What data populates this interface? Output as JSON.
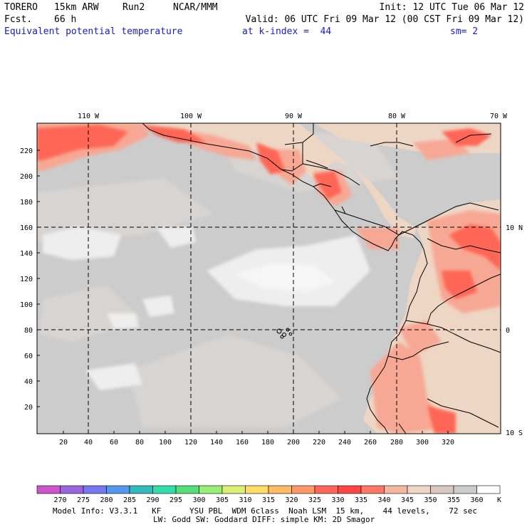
{
  "header": {
    "model": "TORERO",
    "resolution": "15km ARW",
    "run": "Run2",
    "org": "NCAR/MMM",
    "init": "Init: 12 UTC Tue 06 Mar 12",
    "fcst_label": "Fcst.",
    "fcst_value": "66 h",
    "valid": "Valid: 06 UTC Fri 09 Mar 12 (00 CST Fri 09 Mar 12)",
    "field": "Equivalent potential temperature",
    "level": "at k-index =  44",
    "smoothing": "sm= 2"
  },
  "map": {
    "lon_labels": [
      "110 W",
      "100 W",
      "90 W",
      "80 W",
      "70 W"
    ],
    "lat_labels": [
      "10 N",
      "0",
      "10 S"
    ],
    "x_ticks": [
      "20",
      "40",
      "60",
      "80",
      "100",
      "120",
      "140",
      "160",
      "180",
      "200",
      "220",
      "240",
      "260",
      "280",
      "300",
      "320"
    ],
    "y_ticks": [
      "20",
      "40",
      "60",
      "80",
      "100",
      "120",
      "140",
      "160",
      "180",
      "200",
      "220"
    ]
  },
  "colorbar": {
    "values": [
      "270",
      "275",
      "280",
      "285",
      "290",
      "295",
      "300",
      "305",
      "310",
      "315",
      "320",
      "325",
      "330",
      "335",
      "340",
      "345",
      "350",
      "355",
      "360"
    ],
    "unit": "K",
    "colors": [
      "#cc55cc",
      "#9966dd",
      "#7777ee",
      "#5599ee",
      "#33bbbb",
      "#33ddaa",
      "#55dd77",
      "#99ee77",
      "#ddee77",
      "#ffdd66",
      "#ffbb66",
      "#ff9966",
      "#ff6655",
      "#ff4444",
      "#ff7766",
      "#f4b8a0",
      "#eed6c4",
      "#d8c8c0",
      "#cccccc",
      "#ffffff"
    ]
  },
  "footer": {
    "line1": "Model Info: V3.3.1   KF      YSU PBL  WDM 6class  Noah LSM  15 km,    44 levels,    72 sec",
    "line2": "LW: Godd SW: Goddard DIFF: simple KM: 2D Smagor"
  }
}
